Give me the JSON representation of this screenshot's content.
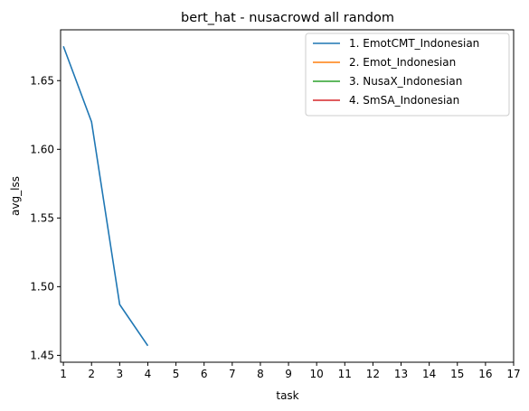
{
  "chart_data": {
    "type": "line",
    "title": "bert_hat - nusacrowd all random",
    "xlabel": "task",
    "ylabel": "avg_lss",
    "xlim": [
      0.9,
      17
    ],
    "ylim": [
      1.445,
      1.687
    ],
    "x_ticks": [
      "1",
      "2",
      "3",
      "4",
      "5",
      "6",
      "7",
      "8",
      "9",
      "10",
      "11",
      "12",
      "13",
      "14",
      "15",
      "16",
      "17"
    ],
    "y_ticks": [
      "1.45",
      "1.50",
      "1.55",
      "1.60",
      "1.65"
    ],
    "grid": false,
    "legend_position": "top-right",
    "series": [
      {
        "name": "1. EmotCMT_Indonesian",
        "color": "#1f77b4",
        "x": [
          1,
          2,
          3,
          4
        ],
        "values": [
          1.675,
          1.62,
          1.487,
          1.457
        ]
      },
      {
        "name": "2. Emot_Indonesian",
        "color": "#ff7f0e",
        "x": [],
        "values": []
      },
      {
        "name": "3. NusaX_Indonesian",
        "color": "#2ca02c",
        "x": [],
        "values": []
      },
      {
        "name": "4. SmSA_Indonesian",
        "color": "#d62728",
        "x": [],
        "values": []
      }
    ]
  }
}
